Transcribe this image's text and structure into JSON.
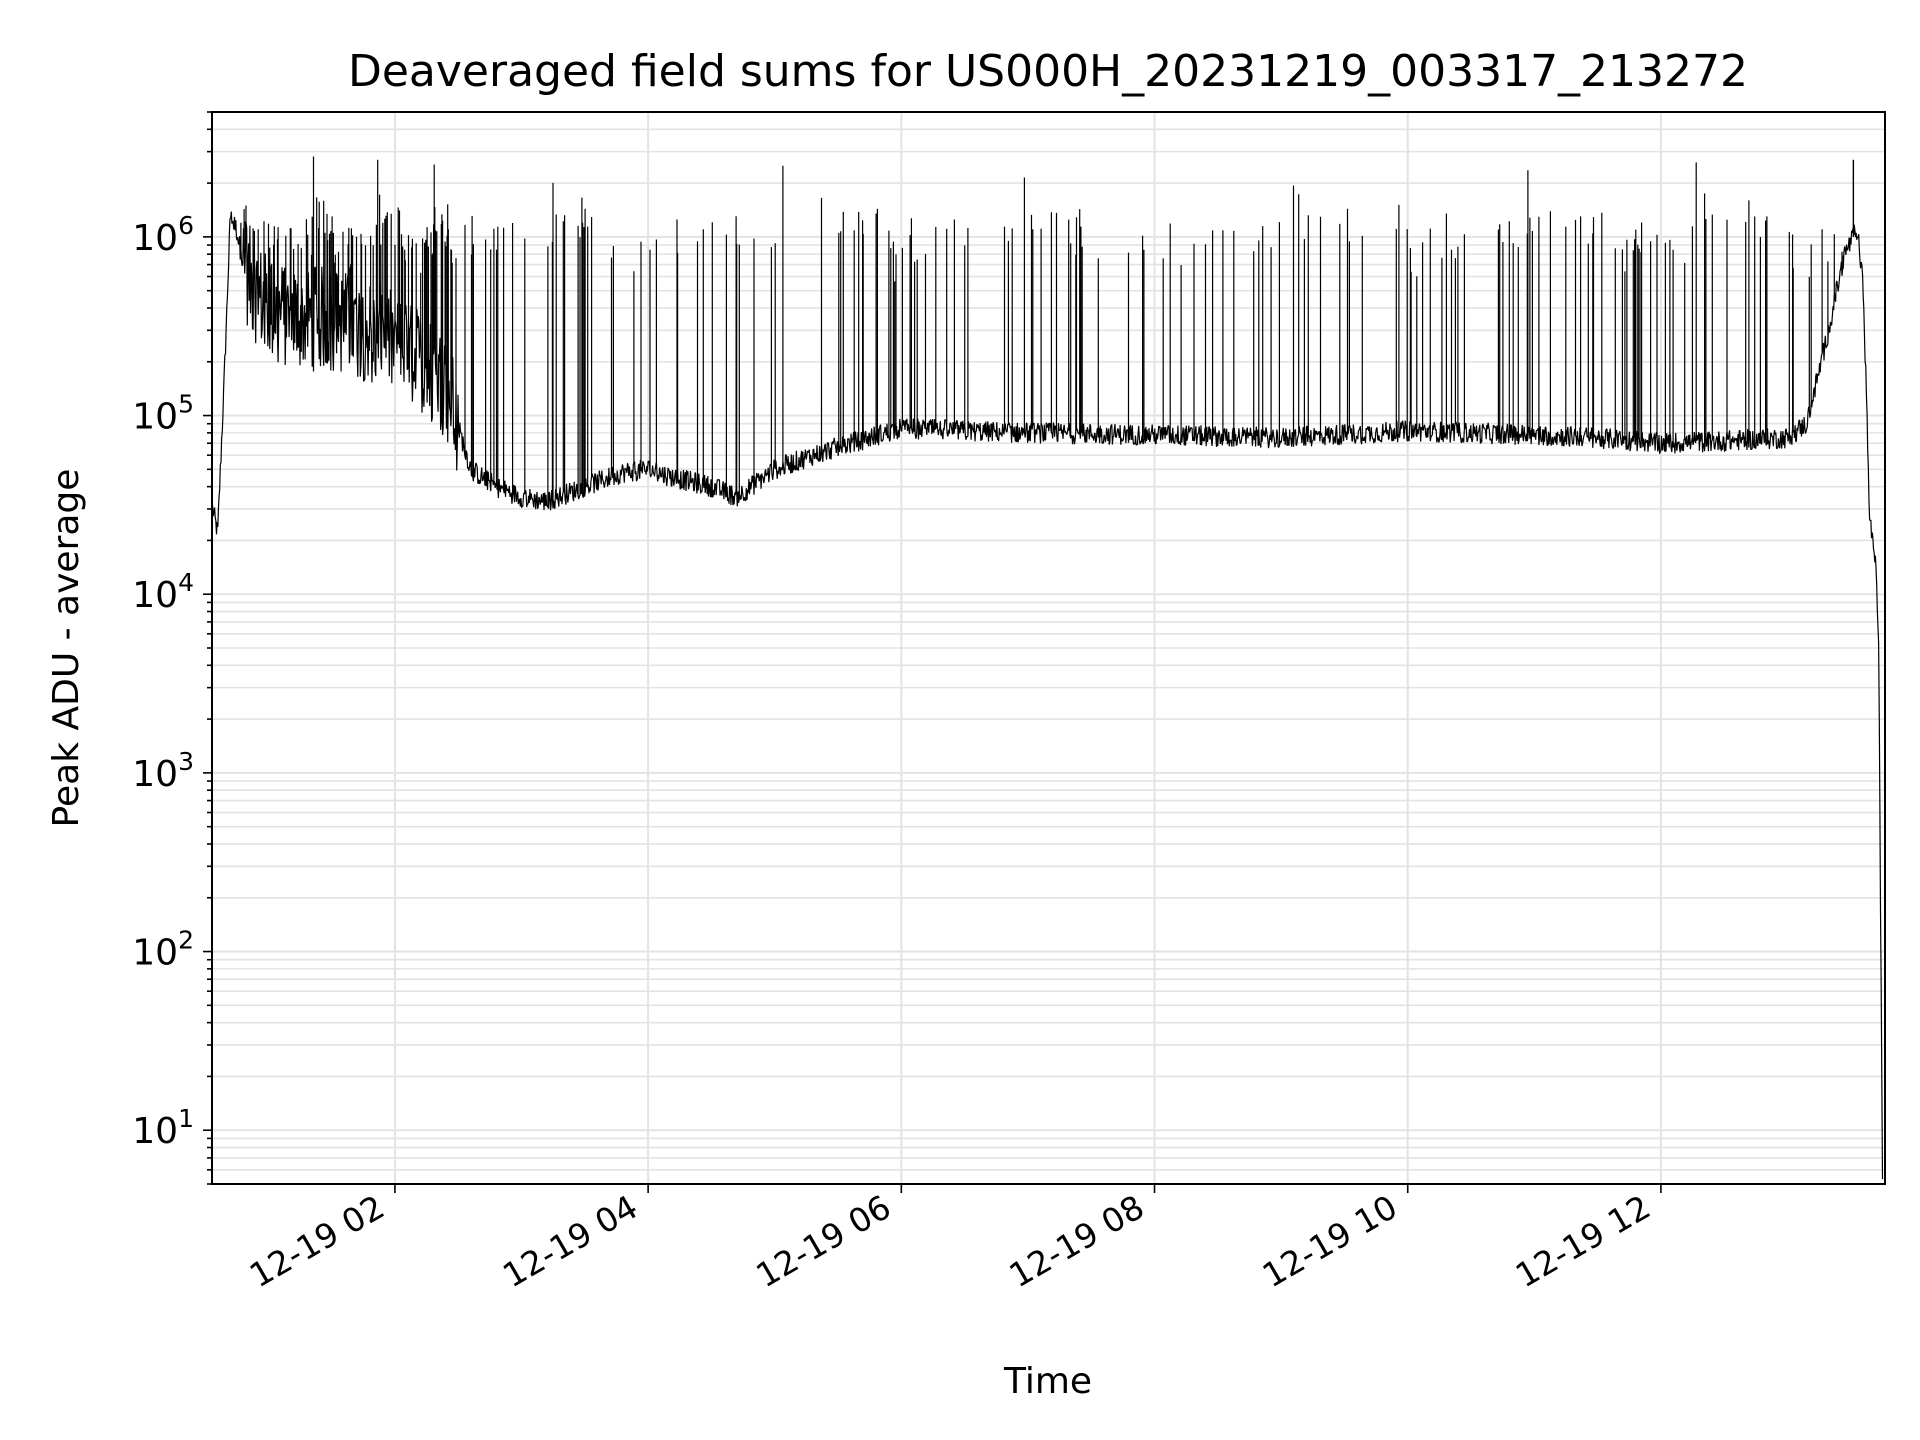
{
  "chart_data": {
    "type": "line",
    "title": "Deaveraged field sums for US000H_20231219_003317_213272",
    "xlabel": "Time",
    "ylabel": "Peak ADU - average",
    "yscale": "log",
    "ylim": [
      5,
      5000000
    ],
    "xlim_hours": [
      0.555,
      13.77
    ],
    "x_ticks": [
      {
        "label": "12-19 02",
        "hour": 2
      },
      {
        "label": "12-19 04",
        "hour": 4
      },
      {
        "label": "12-19 06",
        "hour": 6
      },
      {
        "label": "12-19 08",
        "hour": 8
      },
      {
        "label": "12-19 10",
        "hour": 10
      },
      {
        "label": "12-19 12",
        "hour": 12
      }
    ],
    "y_ticks": [
      {
        "base": "10",
        "exp": "1",
        "value": 10
      },
      {
        "base": "10",
        "exp": "2",
        "value": 100
      },
      {
        "base": "10",
        "exp": "3",
        "value": 1000
      },
      {
        "base": "10",
        "exp": "4",
        "value": 10000
      },
      {
        "base": "10",
        "exp": "5",
        "value": 100000
      },
      {
        "base": "10",
        "exp": "6",
        "value": 1000000
      }
    ],
    "grid": true,
    "line_color": "#000000",
    "series": [
      {
        "x_hours": [
          0.56,
          0.6,
          0.65,
          0.7,
          0.75,
          0.8,
          0.9,
          1.0,
          1.2,
          1.5,
          1.8,
          2.0,
          2.2,
          2.4,
          2.6,
          2.8,
          3.0,
          3.2,
          3.5,
          3.8,
          4.0,
          4.2,
          4.5,
          4.7,
          5.0,
          5.3,
          5.6,
          6.0,
          6.5,
          7.0,
          8.0,
          9.0,
          10.0,
          11.0,
          11.5,
          12.0,
          12.5,
          13.0,
          13.15,
          13.3,
          13.45,
          13.55,
          13.6,
          13.65,
          13.7,
          13.72,
          13.75
        ],
        "baseline": [
          30000,
          22000,
          150000,
          1300000,
          1100000,
          700000,
          500000,
          400000,
          350000,
          350000,
          300000,
          250000,
          200000,
          150000,
          50000,
          40000,
          35000,
          33000,
          40000,
          48000,
          50000,
          45000,
          40000,
          35000,
          50000,
          60000,
          70000,
          85000,
          82000,
          80000,
          78000,
          75000,
          82000,
          78000,
          75000,
          70000,
          72000,
          75000,
          90000,
          250000,
          800000,
          1100000,
          500000,
          25000,
          15000,
          5000,
          6
        ],
        "spike_peaks": [
          1700000,
          1200000,
          1500000,
          1600000,
          1400000,
          1700000,
          1300000,
          1100000,
          1400000,
          1500000,
          1300000,
          1000000,
          900000,
          800000,
          1000000,
          1200000,
          1000000,
          1300000,
          900000,
          1000000,
          1100000,
          1200000,
          1100000,
          1250000,
          1100000,
          1200000,
          1100000,
          1000000,
          1300000,
          2700000
        ]
      }
    ]
  }
}
